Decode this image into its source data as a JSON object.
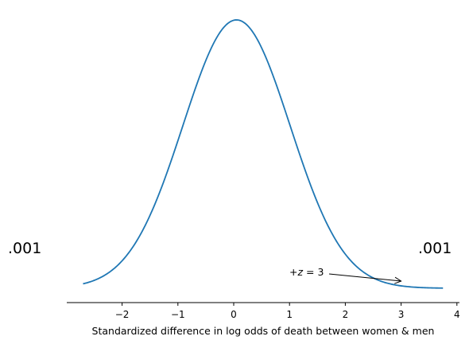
{
  "chart_data": {
    "type": "line",
    "title": "",
    "xlabel": "Standardized difference in log odds of death between women & men",
    "ylabel": "",
    "xlim": [
      -3.0,
      4.05
    ],
    "xticks": [
      -2,
      -1,
      0,
      1,
      2,
      3,
      4
    ],
    "xtick_labels": [
      "−2",
      "−1",
      "0",
      "1",
      "2",
      "3",
      "4"
    ],
    "curve": {
      "shape": "standard normal density",
      "mean": 0.05,
      "sd": 0.96,
      "x_start": -2.7,
      "x_end": 3.75
    },
    "side_labels": {
      "left": ".001",
      "right": ".001"
    },
    "annotation": {
      "text_prefix": "+",
      "text_var": "z",
      "text_eq": " = 3",
      "arrow_to_x": 3.0
    },
    "grid": false,
    "spines": [
      "bottom"
    ]
  }
}
